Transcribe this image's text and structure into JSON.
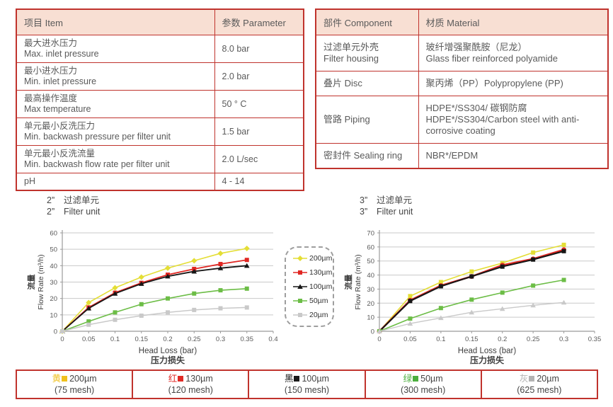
{
  "theme": {
    "table_border_red": "#c0332d",
    "table_header_bg": "#f8dfd3",
    "text_gray": "#595959",
    "grid_gray": "#c9c9c9",
    "axis_gray": "#9b9b9b"
  },
  "spec_table": {
    "headers": [
      "项目 Item",
      "参数 Parameter"
    ],
    "rows": [
      {
        "zh": "最大进水压力",
        "en": "Max. inlet pressure",
        "value": "8.0 bar"
      },
      {
        "zh": "最小进水压力",
        "en": "Min. inlet pressure",
        "value": "2.0 bar"
      },
      {
        "zh": "最高操作温度",
        "en": "Max temperature",
        "value": "50 ° C"
      },
      {
        "zh": "单元最小反洗压力",
        "en": "Min. backwash pressure per filter unit",
        "value": "1.5 bar"
      },
      {
        "zh": "单元最小反洗流量",
        "en": "Min. backwash flow rate per filter unit",
        "value": "2.0 L/sec"
      },
      {
        "zh": "pH",
        "en": "",
        "value": "4 - 14"
      }
    ]
  },
  "material_table": {
    "headers": [
      "部件 Component",
      "材质 Material"
    ],
    "rows": [
      {
        "zh": "过滤单元外壳",
        "en": "Filter housing",
        "mat_zh": "玻纤增强聚酰胺（尼龙）",
        "mat_en": "Glass fiber reinforced polyamide"
      },
      {
        "zh": "叠片 Disc",
        "en": "",
        "mat_zh": "聚丙烯（PP）Polypropylene (PP)",
        "mat_en": ""
      },
      {
        "zh": "管路 Piping",
        "en": "",
        "mat_zh": "HDPE*/SS304/ 碳钢防腐",
        "mat_en": "HDPE*/SS304/Carbon steel with anti-corrosive coating"
      },
      {
        "zh": "密封件 Sealing ring",
        "en": "",
        "mat_zh": "NBR*/EPDM",
        "mat_en": ""
      }
    ]
  },
  "chart_data": [
    {
      "type": "line",
      "size_label": "2”",
      "title_zh": "过滤单元",
      "title_en": "Filter unit",
      "xlabel_en": "Head Loss (bar)",
      "xlabel_zh": "压力损失",
      "ylabel_zh": "流量",
      "ylabel_en": "Flow Rate (m³/h)",
      "xlim": [
        0,
        0.4
      ],
      "ylim": [
        0,
        60
      ],
      "xstep": 0.05,
      "ystep": 10,
      "grid": "horizontal",
      "legend_position": "right-outside",
      "x": [
        0,
        0.05,
        0.1,
        0.15,
        0.2,
        0.25,
        0.3,
        0.35
      ],
      "series": [
        {
          "name": "200µm",
          "color": "#e4de35",
          "marker": "diamond",
          "lw": 1.6,
          "values": [
            0,
            17.5,
            26.5,
            33,
            38.5,
            43,
            47.5,
            50.5
          ]
        },
        {
          "name": "130µm",
          "color": "#e02723",
          "marker": "square",
          "lw": 1.8,
          "values": [
            0,
            14.5,
            23.5,
            29.5,
            34.5,
            38,
            41,
            43.5
          ]
        },
        {
          "name": "100µm",
          "color": "#161616",
          "marker": "triangle",
          "lw": 1.8,
          "values": [
            0,
            14,
            23,
            29,
            33.5,
            36.5,
            38.5,
            40
          ]
        },
        {
          "name": "50µm",
          "color": "#6cbd46",
          "marker": "square",
          "lw": 1.6,
          "values": [
            0,
            6,
            11.5,
            16.5,
            20,
            23,
            25,
            26
          ]
        },
        {
          "name": "20µm",
          "color": "#c9c9c9",
          "marker": "square",
          "lw": 1.5,
          "values": [
            0,
            4,
            7,
            9.5,
            11.5,
            13,
            14,
            14.5
          ]
        }
      ]
    },
    {
      "type": "line",
      "size_label": "3”",
      "title_zh": "过滤单元",
      "title_en": "Filter unit",
      "xlabel_en": "Head Loss (bar)",
      "xlabel_zh": "压力损失",
      "ylabel_zh": "流量",
      "ylabel_en": "Flow Rate (m³/h)",
      "xlim": [
        0,
        0.35
      ],
      "ylim": [
        0,
        70
      ],
      "xstep": 0.05,
      "ystep": 10,
      "grid": "horizontal",
      "legend_position": "shared-left",
      "x": [
        0,
        0.05,
        0.1,
        0.15,
        0.2,
        0.25,
        0.3
      ],
      "series": [
        {
          "name": "200µm",
          "color": "#e4de35",
          "marker": "square",
          "lw": 1.6,
          "values": [
            0,
            25,
            35,
            42.5,
            48.5,
            56,
            61.5
          ]
        },
        {
          "name": "130µm",
          "color": "#e02723",
          "marker": "circle",
          "lw": 2.6,
          "values": [
            0,
            22,
            32.5,
            39,
            47,
            51.5,
            58
          ]
        },
        {
          "name": "100µm",
          "color": "#161616",
          "marker": "square",
          "lw": 2.1,
          "values": [
            0,
            21.5,
            32,
            39,
            46,
            51,
            57
          ]
        },
        {
          "name": "50µm",
          "color": "#6cbd46",
          "marker": "square",
          "lw": 1.6,
          "values": [
            0,
            9,
            16.5,
            22.5,
            27.5,
            32.5,
            36.5
          ]
        },
        {
          "name": "20µm",
          "color": "#c9c9c9",
          "marker": "triangle",
          "lw": 1.4,
          "values": [
            0,
            5.5,
            9.5,
            13.5,
            16,
            18.5,
            20.5
          ]
        }
      ]
    }
  ],
  "chart_legend": {
    "items": [
      {
        "label": "200µm",
        "color": "#e4de35",
        "marker": "diamond"
      },
      {
        "label": "130µm",
        "color": "#e02723",
        "marker": "square"
      },
      {
        "label": "100µm",
        "color": "#161616",
        "marker": "triangle"
      },
      {
        "label": "50µm",
        "color": "#6cbd46",
        "marker": "square"
      },
      {
        "label": "20µm",
        "color": "#c9c9c9",
        "marker": "square"
      }
    ]
  },
  "mesh_legend": {
    "items": [
      {
        "color_name": "黄",
        "color": "#f0c11e",
        "size": "200µm",
        "mesh": "(75 mesh)"
      },
      {
        "color_name": "红",
        "color": "#e02a25",
        "size": "130µm",
        "mesh": "(120 mesh)"
      },
      {
        "color_name": "黑",
        "color": "#1a1a1a",
        "size": "100µm",
        "mesh": "(150 mesh)"
      },
      {
        "color_name": "绿",
        "color": "#4caf3f",
        "size": "50µm",
        "mesh": "(300 mesh)"
      },
      {
        "color_name": "灰",
        "color": "#b3b3b3",
        "size": "20µm",
        "mesh": "(625 mesh)"
      }
    ]
  }
}
